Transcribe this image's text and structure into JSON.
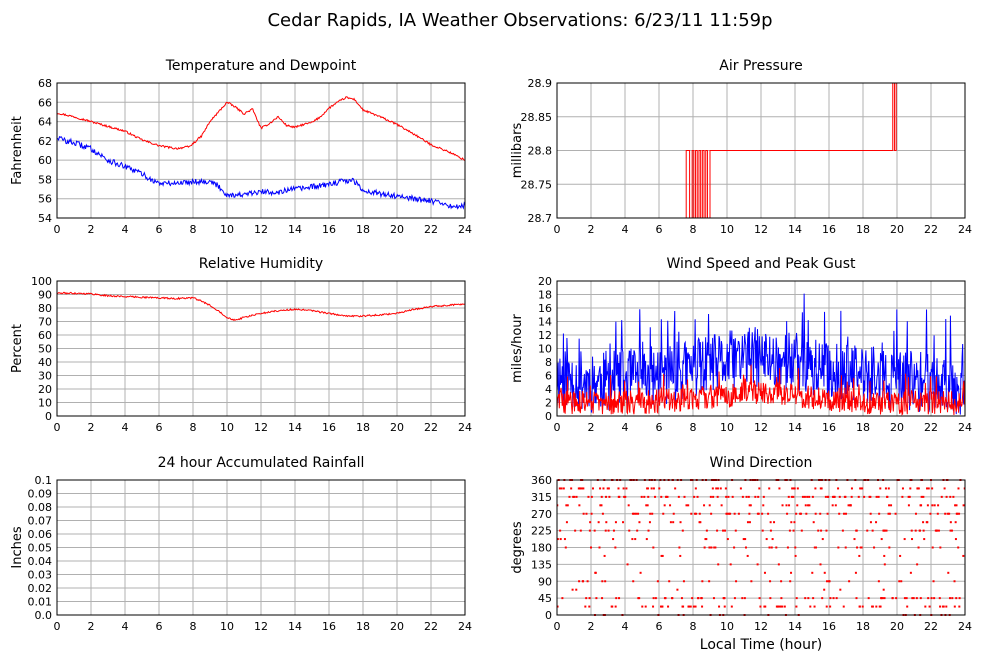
{
  "title": "Cedar Rapids, IA Weather Observations: 6/23/11 11:59p",
  "colors": {
    "red": "#ff0000",
    "blue": "#0000ff",
    "grid": "#b0b0b0",
    "frame": "#000000"
  },
  "chart_data": [
    {
      "id": "temp",
      "type": "line",
      "title": "Temperature and Dewpoint",
      "xlabel": "",
      "ylabel": "Fahrenheit",
      "xlim": [
        0,
        24
      ],
      "ylim": [
        54,
        68
      ],
      "xticks": [
        0,
        2,
        4,
        6,
        8,
        10,
        12,
        14,
        16,
        18,
        20,
        22,
        24
      ],
      "yticks": [
        54,
        56,
        58,
        60,
        62,
        64,
        66,
        68
      ],
      "ytick_labels": [
        "54",
        "56",
        "58",
        "60",
        "62",
        "64",
        "66",
        "68"
      ],
      "grid": true,
      "series": [
        {
          "color": "#ff0000",
          "noise": 0.1,
          "x": [
            0,
            1,
            2,
            3,
            4,
            5,
            6,
            7,
            7.8,
            8.5,
            9,
            9.5,
            10,
            10.5,
            11,
            11.5,
            12,
            12.5,
            13,
            13.5,
            14,
            14.5,
            15,
            15.5,
            16,
            16.5,
            17,
            17.5,
            18,
            19,
            20,
            21,
            22,
            23,
            24
          ],
          "y": [
            64.9,
            64.5,
            64.0,
            63.5,
            63.0,
            62.1,
            61.5,
            61.2,
            61.4,
            62.5,
            64.0,
            65.0,
            66.0,
            65.5,
            64.8,
            65.3,
            63.3,
            63.8,
            64.5,
            63.6,
            63.4,
            63.7,
            63.9,
            64.5,
            65.4,
            66.0,
            66.5,
            66.3,
            65.2,
            64.5,
            63.7,
            62.7,
            61.6,
            60.9,
            60.0
          ]
        },
        {
          "color": "#0000ff",
          "noise": 0.3,
          "x": [
            0,
            0.5,
            1,
            2,
            3,
            4,
            5,
            5.5,
            6,
            7,
            8,
            9,
            9.5,
            10,
            10.5,
            11,
            12,
            13,
            14,
            15,
            16,
            17,
            17.5,
            18,
            19,
            20,
            21,
            22,
            23,
            24
          ],
          "y": [
            62.4,
            62.0,
            61.8,
            61.2,
            60.0,
            59.3,
            58.6,
            58.0,
            57.6,
            57.6,
            57.8,
            57.8,
            57.3,
            56.4,
            56.4,
            56.4,
            56.7,
            56.7,
            57.0,
            57.2,
            57.5,
            57.9,
            57.8,
            56.9,
            56.5,
            56.3,
            56.0,
            55.8,
            55.2,
            55.3
          ]
        }
      ]
    },
    {
      "id": "pressure",
      "type": "line",
      "title": "Air Pressure",
      "xlabel": "",
      "ylabel": "millibars",
      "xlim": [
        0,
        24
      ],
      "ylim": [
        28.7,
        28.9
      ],
      "xticks": [
        0,
        2,
        4,
        6,
        8,
        10,
        12,
        14,
        16,
        18,
        20,
        22,
        24
      ],
      "yticks": [
        28.7,
        28.75,
        28.8,
        28.85,
        28.9
      ],
      "ytick_labels": [
        "28.7",
        "28.75",
        "28.8",
        "28.85",
        "28.9"
      ],
      "grid": true,
      "series": [
        {
          "color": "#ff0000",
          "noise": 0,
          "x": [
            0,
            7.6,
            7.6,
            7.8,
            7.8,
            7.95,
            7.95,
            8.05,
            8.05,
            8.15,
            8.15,
            8.25,
            8.25,
            8.35,
            8.35,
            8.45,
            8.45,
            8.55,
            8.55,
            8.65,
            8.65,
            8.75,
            8.75,
            8.85,
            8.85,
            9.0,
            9.0,
            19.75,
            19.75,
            19.85,
            19.85,
            19.95,
            19.95,
            24
          ],
          "y": [
            28.7,
            28.7,
            28.8,
            28.8,
            28.7,
            28.7,
            28.8,
            28.8,
            28.7,
            28.7,
            28.8,
            28.8,
            28.7,
            28.7,
            28.8,
            28.8,
            28.7,
            28.7,
            28.8,
            28.8,
            28.7,
            28.7,
            28.8,
            28.8,
            28.7,
            28.7,
            28.8,
            28.8,
            28.9,
            28.9,
            28.8,
            28.8,
            28.9,
            28.9
          ]
        }
      ]
    },
    {
      "id": "humidity",
      "type": "line",
      "title": "Relative Humidity",
      "xlabel": "",
      "ylabel": "Percent",
      "xlim": [
        0,
        24
      ],
      "ylim": [
        0,
        100
      ],
      "xticks": [
        0,
        2,
        4,
        6,
        8,
        10,
        12,
        14,
        16,
        18,
        20,
        22,
        24
      ],
      "yticks": [
        0,
        10,
        20,
        30,
        40,
        50,
        60,
        70,
        80,
        90,
        100
      ],
      "ytick_labels": [
        "0",
        "10",
        "20",
        "30",
        "40",
        "50",
        "60",
        "70",
        "80",
        "90",
        "100"
      ],
      "grid": true,
      "series": [
        {
          "color": "#ff0000",
          "noise": 0.6,
          "x": [
            0,
            1,
            2,
            3,
            4,
            5,
            6,
            7,
            8,
            8.5,
            9,
            9.5,
            10,
            10.5,
            11,
            12,
            13,
            14,
            15,
            16,
            17,
            18,
            19,
            20,
            21,
            22,
            23,
            24
          ],
          "y": [
            91,
            91,
            90.5,
            89,
            88.5,
            88,
            87.5,
            87,
            87.5,
            85,
            82,
            78,
            73,
            71,
            73,
            76,
            78,
            79,
            78,
            76,
            74,
            74,
            75,
            76,
            79,
            81,
            82,
            83
          ]
        }
      ]
    },
    {
      "id": "wind",
      "type": "line",
      "title": "Wind Speed and Peak Gust",
      "xlabel": "",
      "ylabel": "miles/hour",
      "xlim": [
        0,
        24
      ],
      "ylim": [
        0,
        20
      ],
      "xticks": [
        0,
        2,
        4,
        6,
        8,
        10,
        12,
        14,
        16,
        18,
        20,
        22,
        24
      ],
      "yticks": [
        0,
        2,
        4,
        6,
        8,
        10,
        12,
        14,
        16,
        18,
        20
      ],
      "ytick_labels": [
        "0",
        "2",
        "4",
        "6",
        "8",
        "10",
        "12",
        "14",
        "16",
        "18",
        "20"
      ],
      "grid": true,
      "series": [
        {
          "color": "#0000ff",
          "noise": 0,
          "jagged": true,
          "amplitude": 4.5,
          "seed": 11,
          "x": [
            0,
            2,
            4,
            6,
            8,
            10,
            11,
            12,
            14,
            16,
            18,
            20,
            22,
            24
          ],
          "y": [
            6,
            5,
            5.5,
            6,
            7,
            8,
            9,
            8.5,
            8,
            6.5,
            6,
            5,
            5,
            4.5
          ]
        },
        {
          "color": "#ff0000",
          "noise": 0,
          "jagged": true,
          "amplitude": 1.8,
          "seed": 29,
          "x": [
            0,
            2,
            4,
            6,
            8,
            10,
            11,
            12,
            14,
            16,
            18,
            20,
            22,
            24
          ],
          "y": [
            2,
            2,
            2,
            2.2,
            2.5,
            3,
            3.5,
            3.5,
            3,
            2.5,
            2,
            2,
            2,
            1.8
          ]
        }
      ]
    },
    {
      "id": "rain",
      "type": "line",
      "title": "24 hour Accumulated Rainfall",
      "xlabel": "",
      "ylabel": "Inches",
      "xlim": [
        0,
        24
      ],
      "ylim": [
        0,
        0.1
      ],
      "xticks": [
        0,
        2,
        4,
        6,
        8,
        10,
        12,
        14,
        16,
        18,
        20,
        22,
        24
      ],
      "yticks": [
        0,
        0.01,
        0.02,
        0.03,
        0.04,
        0.05,
        0.06,
        0.07,
        0.08,
        0.09,
        0.1
      ],
      "ytick_labels": [
        "0.0",
        "0.01",
        "0.02",
        "0.03",
        "0.04",
        "0.05",
        "0.06",
        "0.07",
        "0.08",
        "0.09",
        "0.1"
      ],
      "grid": true,
      "series": [
        {
          "color": "#ff0000",
          "noise": 0,
          "x": [
            0,
            24
          ],
          "y": [
            0,
            0
          ]
        }
      ]
    },
    {
      "id": "direction",
      "type": "scatter",
      "title": "Wind Direction",
      "xlabel": "Local Time (hour)",
      "ylabel": "degrees",
      "xlim": [
        0,
        24
      ],
      "ylim": [
        0,
        360
      ],
      "xticks": [
        0,
        2,
        4,
        6,
        8,
        10,
        12,
        14,
        16,
        18,
        20,
        22,
        24
      ],
      "yticks": [
        0,
        45,
        90,
        135,
        180,
        225,
        270,
        315,
        360
      ],
      "ytick_labels": [
        "0",
        "45",
        "90",
        "135",
        "180",
        "225",
        "270",
        "315",
        "360"
      ],
      "grid": true,
      "series": [
        {
          "color": "#ff0000",
          "scatter_gen": true,
          "seed": 7,
          "levels": [
            0,
            22.5,
            45,
            67.5,
            90,
            112.5,
            135,
            157.5,
            180,
            202.5,
            225,
            247.5,
            270,
            292.5,
            315,
            337.5,
            360
          ],
          "weights": [
            2,
            6,
            5,
            1,
            2,
            1,
            1,
            1,
            3,
            2,
            5,
            3,
            6,
            5,
            8,
            6,
            9
          ]
        }
      ]
    }
  ]
}
